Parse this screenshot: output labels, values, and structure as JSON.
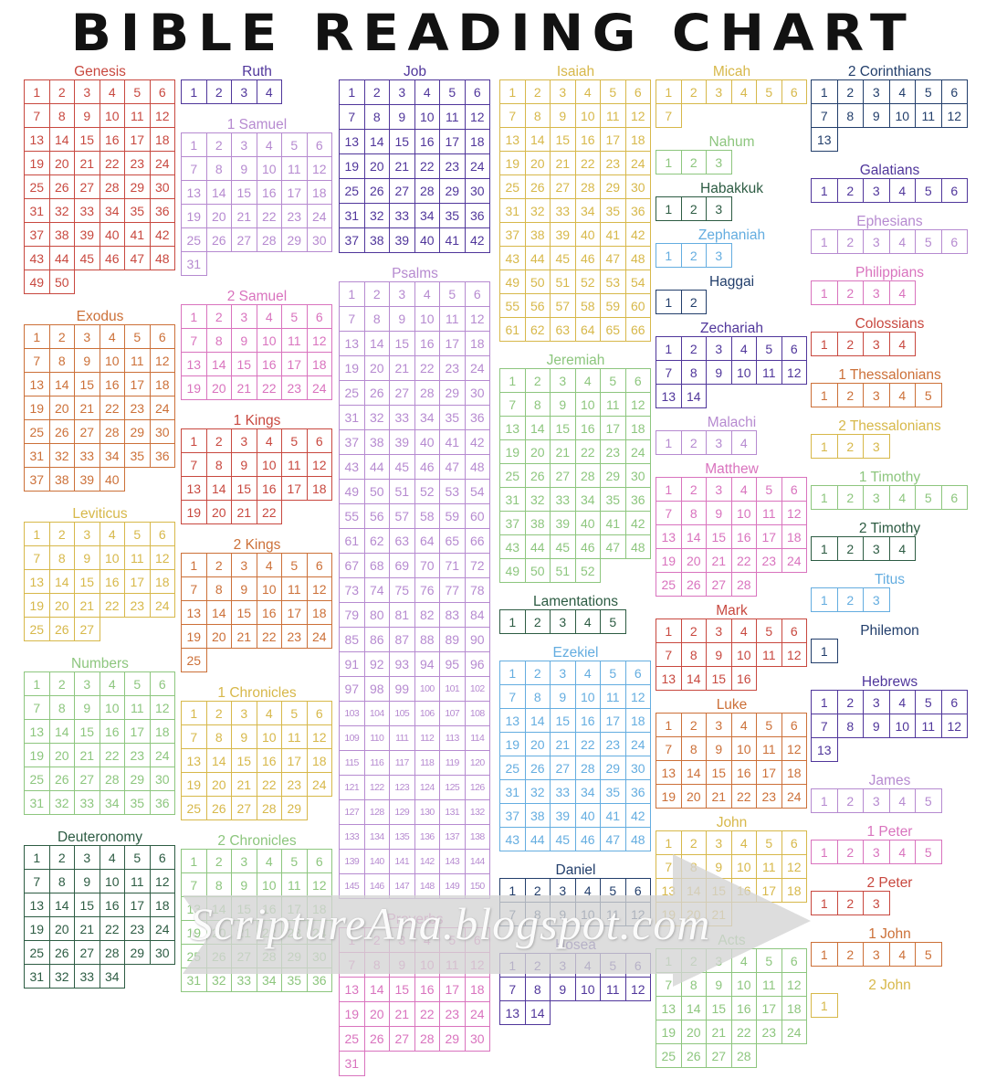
{
  "title": "BIBLE READING CHART",
  "watermark": "ScriptureAna.blogspot.com",
  "palette": {
    "red": "#c8483f",
    "orange": "#cc7038",
    "yellow": "#d7b84a",
    "lightGreen": "#8dc67e",
    "darkGreen": "#2d5c43",
    "lightBlue": "#64ade0",
    "navy": "#223e6b",
    "darkPurple": "#50369b",
    "lightPurple": "#b68ad0",
    "pink": "#d973be"
  },
  "columns": [
    [
      {
        "name": "Genesis",
        "chapters": 50,
        "color": "red"
      },
      {
        "name": "Exodus",
        "chapters": 40,
        "color": "orange"
      },
      {
        "name": "Leviticus",
        "chapters": 27,
        "color": "yellow"
      },
      {
        "name": "Numbers",
        "chapters": 36,
        "color": "lightGreen"
      },
      {
        "name": "Deuteronomy",
        "chapters": 34,
        "color": "darkGreen"
      }
    ],
    [
      {
        "name": "Ruth",
        "chapters": 4,
        "color": "darkPurple"
      },
      {
        "name": "1 Samuel",
        "chapters": 31,
        "color": "lightPurple"
      },
      {
        "name": "2 Samuel",
        "chapters": 24,
        "color": "pink"
      },
      {
        "name": "1 Kings",
        "chapters": 22,
        "color": "red"
      },
      {
        "name": "2 Kings",
        "chapters": 25,
        "color": "orange"
      },
      {
        "name": "1 Chronicles",
        "chapters": 29,
        "color": "yellow"
      },
      {
        "name": "2 Chronicles",
        "chapters": 36,
        "color": "lightGreen"
      }
    ],
    [
      {
        "name": "Job",
        "chapters": 42,
        "color": "darkPurple"
      },
      {
        "name": "Psalms",
        "chapters": 150,
        "color": "lightPurple"
      },
      {
        "name": "Proverbs",
        "chapters": 31,
        "color": "pink"
      }
    ],
    [
      {
        "name": "Isaiah",
        "chapters": 66,
        "color": "yellow"
      },
      {
        "name": "Jeremiah",
        "chapters": 52,
        "color": "lightGreen"
      },
      {
        "name": "Lamentations",
        "chapters": 5,
        "color": "darkGreen"
      },
      {
        "name": "Ezekiel",
        "chapters": 48,
        "color": "lightBlue"
      },
      {
        "name": "Daniel",
        "chapters": 12,
        "color": "navy"
      },
      {
        "name": "Hosea",
        "chapters": 14,
        "color": "darkPurple"
      }
    ],
    [
      {
        "name": "Micah",
        "chapters": 7,
        "color": "yellow"
      },
      {
        "name": "Nahum",
        "chapters": 3,
        "color": "lightGreen"
      },
      {
        "name": "Habakkuk",
        "chapters": 3,
        "color": "darkGreen"
      },
      {
        "name": "Zephaniah",
        "chapters": 3,
        "color": "lightBlue"
      },
      {
        "name": "Haggai",
        "chapters": 2,
        "color": "navy"
      },
      {
        "name": "Zechariah",
        "chapters": 14,
        "color": "darkPurple"
      },
      {
        "name": "Malachi",
        "chapters": 4,
        "color": "lightPurple"
      },
      {
        "name": "Matthew",
        "chapters": 28,
        "color": "pink"
      },
      {
        "name": "Mark",
        "chapters": 16,
        "color": "red"
      },
      {
        "name": "Luke",
        "chapters": 24,
        "color": "orange"
      },
      {
        "name": "John",
        "chapters": 21,
        "color": "yellow"
      },
      {
        "name": "Acts",
        "chapters": 28,
        "color": "lightGreen"
      }
    ],
    [
      {
        "name": "2 Corinthians",
        "chapters": 13,
        "color": "navy"
      },
      {
        "name": "Galatians",
        "chapters": 6,
        "color": "darkPurple"
      },
      {
        "name": "Ephesians",
        "chapters": 6,
        "color": "lightPurple"
      },
      {
        "name": "Philippians",
        "chapters": 4,
        "color": "pink"
      },
      {
        "name": "Colossians",
        "chapters": 4,
        "color": "red"
      },
      {
        "name": "1 Thessalonians",
        "chapters": 5,
        "color": "orange"
      },
      {
        "name": "2 Thessalonians",
        "chapters": 3,
        "color": "yellow"
      },
      {
        "name": "1 Timothy",
        "chapters": 6,
        "color": "lightGreen"
      },
      {
        "name": "2 Timothy",
        "chapters": 4,
        "color": "darkGreen"
      },
      {
        "name": "Titus",
        "chapters": 3,
        "color": "lightBlue"
      },
      {
        "name": "Philemon",
        "chapters": 1,
        "color": "navy"
      },
      {
        "name": "Hebrews",
        "chapters": 13,
        "color": "darkPurple"
      },
      {
        "name": "James",
        "chapters": 5,
        "color": "lightPurple"
      },
      {
        "name": "1 Peter",
        "chapters": 5,
        "color": "pink"
      },
      {
        "name": "2 Peter",
        "chapters": 3,
        "color": "red"
      },
      {
        "name": "1 John",
        "chapters": 5,
        "color": "orange"
      },
      {
        "name": "2 John",
        "chapters": 1,
        "color": "yellow"
      }
    ]
  ]
}
